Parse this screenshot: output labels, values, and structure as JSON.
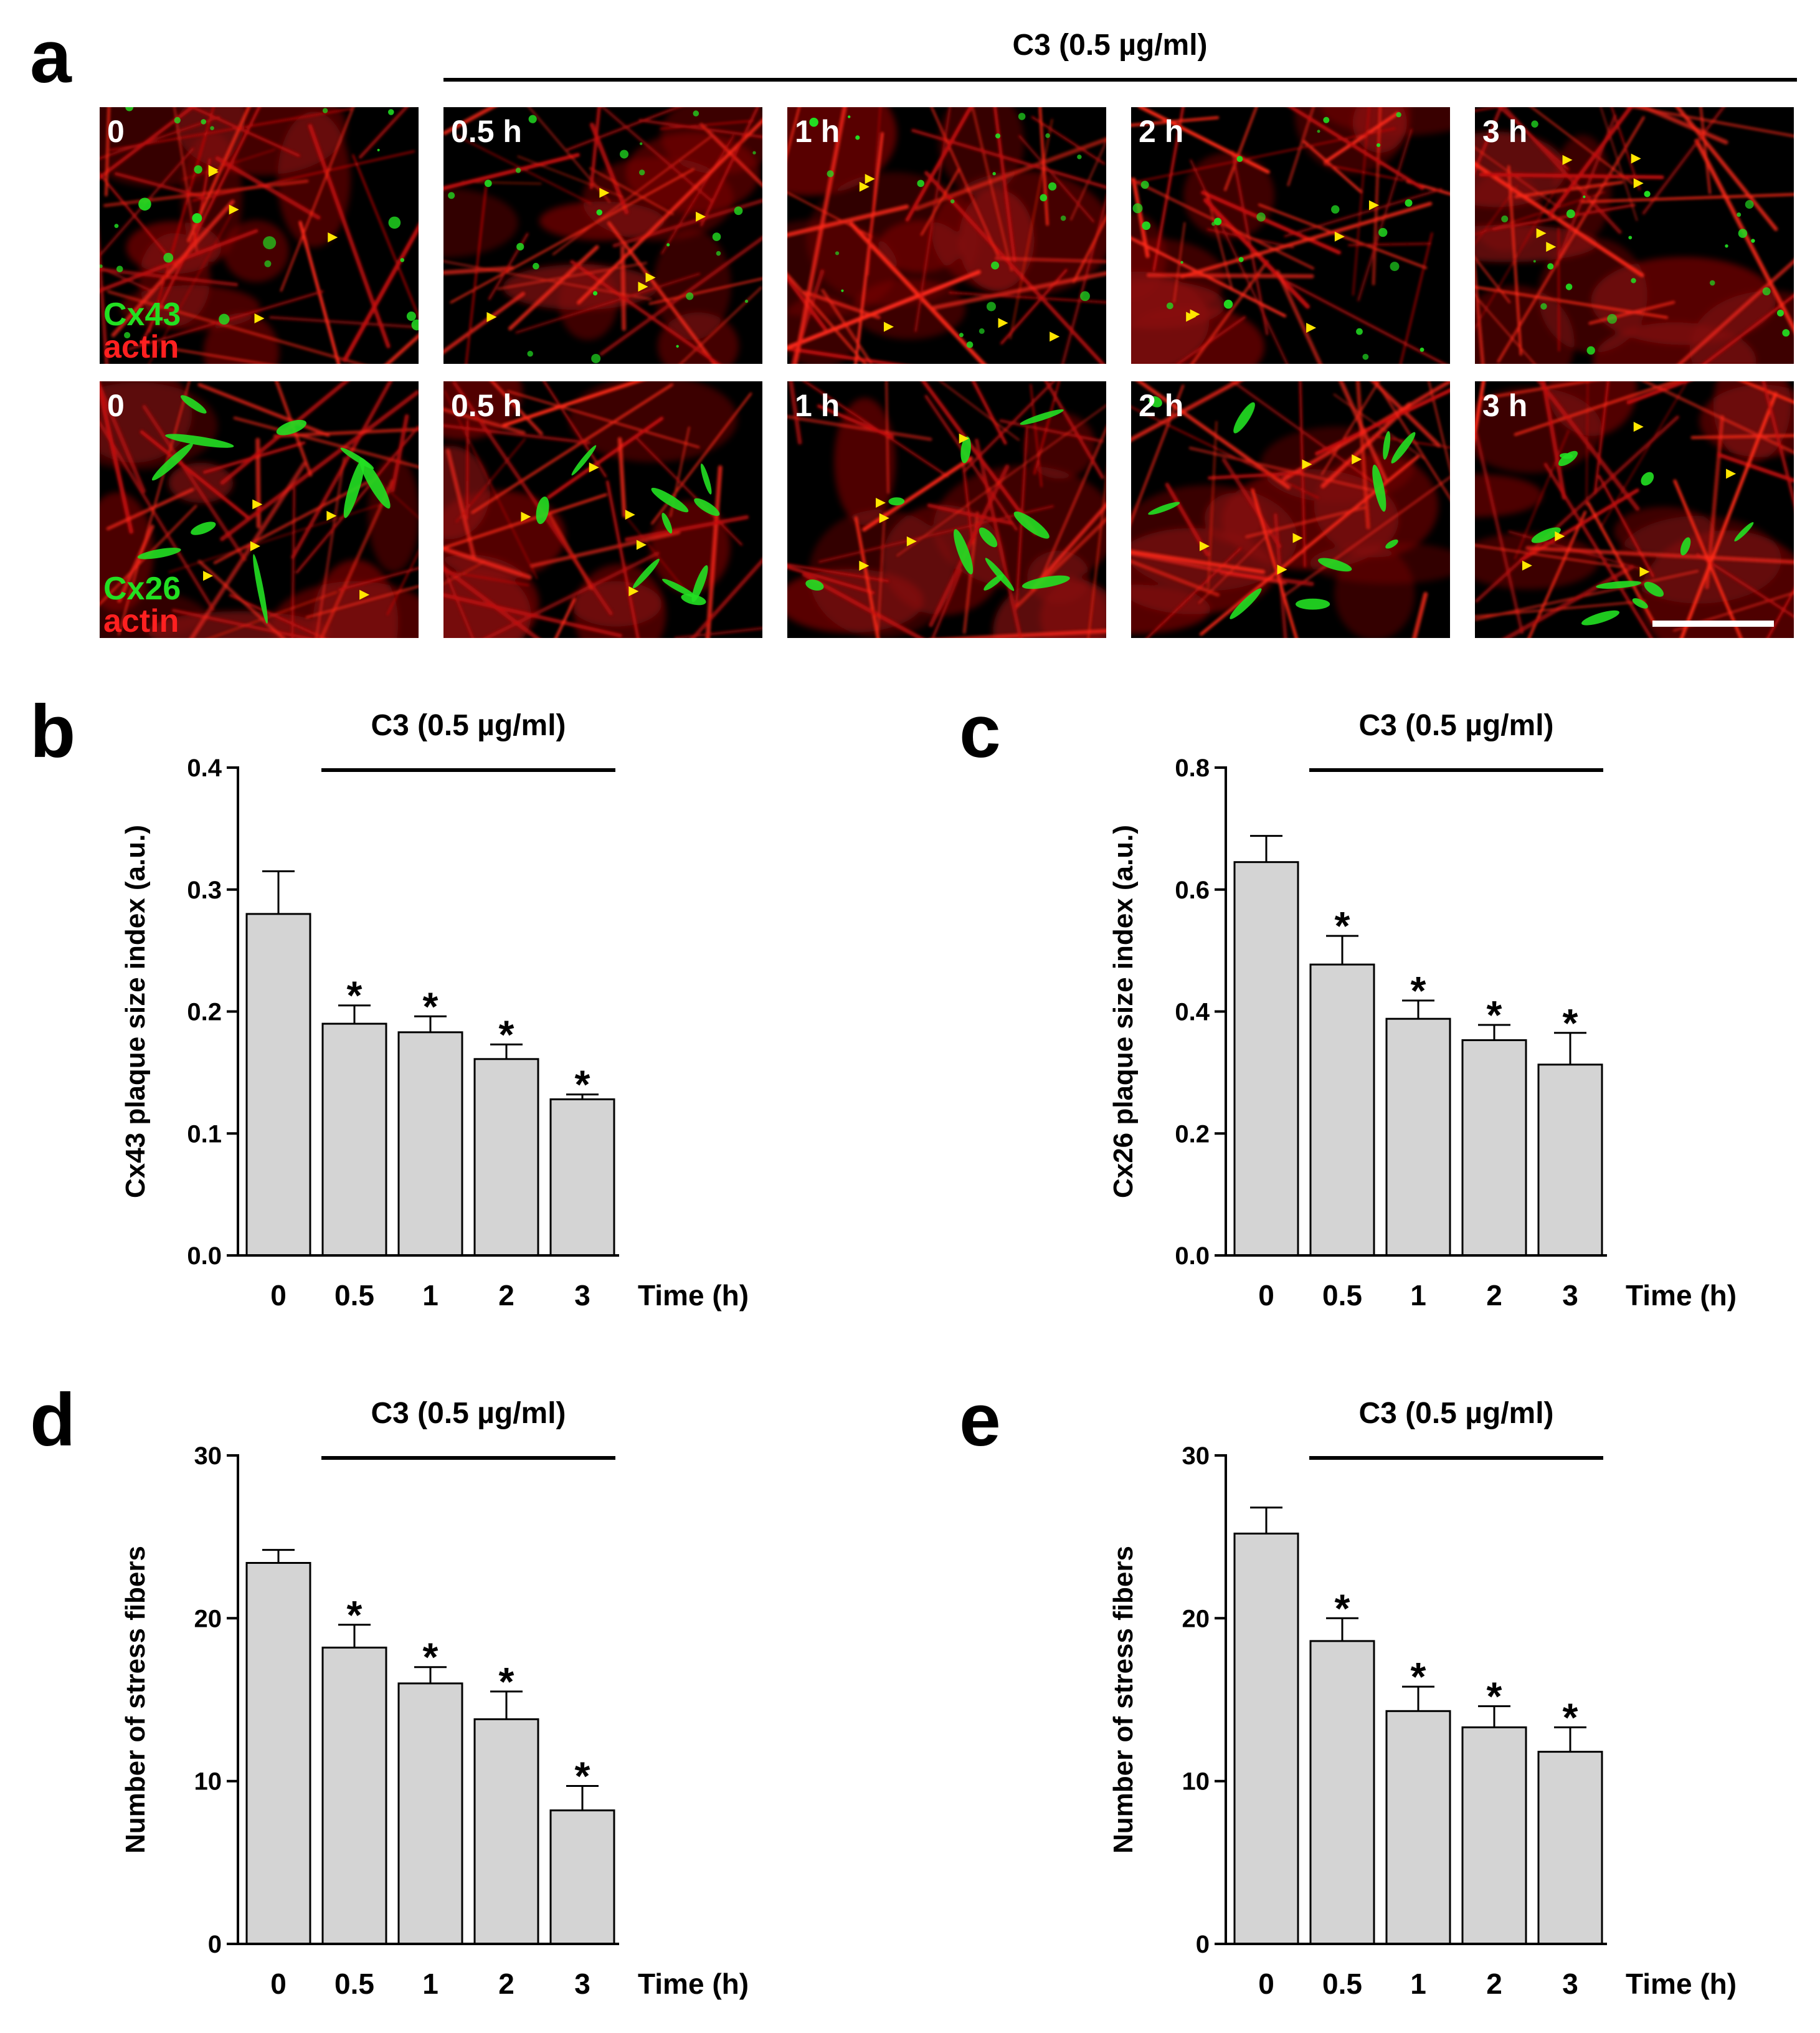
{
  "figure": {
    "panel_a": {
      "letter": "a",
      "treatment_label": "C3 (0.5 µg/ml)",
      "rows": [
        {
          "stain_top": "Cx43",
          "stain_bottom": "actin",
          "times": [
            "0",
            "0.5 h",
            "1 h",
            "2 h",
            "3 h"
          ]
        },
        {
          "stain_top": "Cx26",
          "stain_bottom": "actin",
          "times": [
            "0",
            "0.5 h",
            "1 h",
            "2 h",
            "3 h"
          ]
        }
      ],
      "colors": {
        "actin": "#ff1a1a",
        "connexin": "#22e022",
        "arrowhead": "#ffe600",
        "background": "#000000"
      }
    }
  },
  "chart_data": [
    {
      "panel": "b",
      "type": "bar",
      "treatment_label": "C3 (0.5 µg/ml)",
      "categories": [
        "0",
        "0.5",
        "1",
        "2",
        "3"
      ],
      "values": [
        0.28,
        0.19,
        0.183,
        0.161,
        0.128
      ],
      "errors": [
        0.035,
        0.015,
        0.013,
        0.012,
        0.004
      ],
      "significant": [
        false,
        true,
        true,
        true,
        true
      ],
      "xlabel": "Time (h)",
      "ylabel": "Cx43 plaque size index (a.u.)",
      "ylim": [
        0,
        0.4
      ],
      "yticks": [
        0.0,
        0.1,
        0.2,
        0.3,
        0.4
      ],
      "ytick_labels": [
        "0.0",
        "0.1",
        "0.2",
        "0.3",
        "0.4"
      ],
      "bar_color": "#d4d4d4"
    },
    {
      "panel": "c",
      "type": "bar",
      "treatment_label": "C3 (0.5 µg/ml)",
      "categories": [
        "0",
        "0.5",
        "1",
        "2",
        "3"
      ],
      "values": [
        0.645,
        0.477,
        0.388,
        0.353,
        0.313
      ],
      "errors": [
        0.043,
        0.047,
        0.03,
        0.025,
        0.052
      ],
      "significant": [
        false,
        true,
        true,
        true,
        true
      ],
      "xlabel": "Time (h)",
      "ylabel": "Cx26 plaque size index (a.u.)",
      "ylim": [
        0,
        0.8
      ],
      "yticks": [
        0.0,
        0.2,
        0.4,
        0.6,
        0.8
      ],
      "ytick_labels": [
        "0.0",
        "0.2",
        "0.4",
        "0.6",
        "0.8"
      ],
      "bar_color": "#d4d4d4"
    },
    {
      "panel": "d",
      "type": "bar",
      "treatment_label": "C3 (0.5 µg/ml)",
      "categories": [
        "0",
        "0.5",
        "1",
        "2",
        "3"
      ],
      "values": [
        23.4,
        18.2,
        16.0,
        13.8,
        8.2
      ],
      "errors": [
        0.8,
        1.4,
        1.0,
        1.7,
        1.5
      ],
      "significant": [
        false,
        true,
        true,
        true,
        true
      ],
      "xlabel": "Time (h)",
      "ylabel": "Number of stress fibers",
      "ylim": [
        0,
        30
      ],
      "yticks": [
        0,
        10,
        20,
        30
      ],
      "ytick_labels": [
        "0",
        "10",
        "20",
        "30"
      ],
      "bar_color": "#d4d4d4"
    },
    {
      "panel": "e",
      "type": "bar",
      "treatment_label": "C3 (0.5 µg/ml)",
      "categories": [
        "0",
        "0.5",
        "1",
        "2",
        "3"
      ],
      "values": [
        25.2,
        18.6,
        14.3,
        13.3,
        11.8
      ],
      "errors": [
        1.6,
        1.4,
        1.5,
        1.3,
        1.5
      ],
      "significant": [
        false,
        true,
        true,
        true,
        true
      ],
      "xlabel": "Time (h)",
      "ylabel": "Number of stress fibers",
      "ylim": [
        0,
        30
      ],
      "yticks": [
        0,
        10,
        20,
        30
      ],
      "ytick_labels": [
        "0",
        "10",
        "20",
        "30"
      ],
      "bar_color": "#d4d4d4"
    }
  ]
}
